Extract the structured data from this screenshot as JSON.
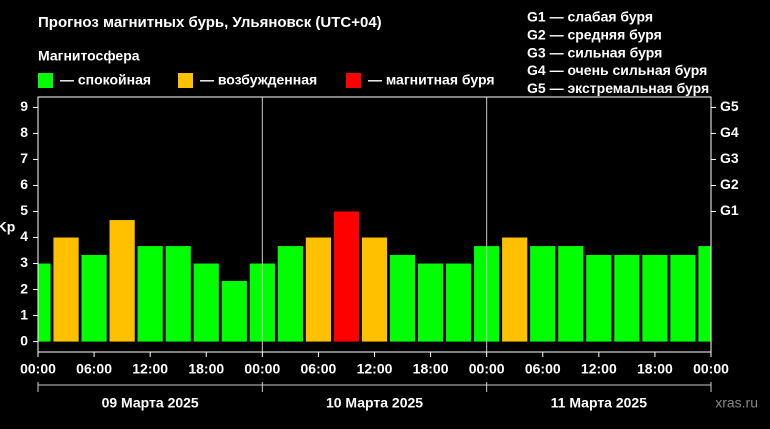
{
  "chart_data": {
    "type": "bar",
    "title": "Прогноз магнитных бурь, Ульяновск (UTC+04)",
    "legend_title": "Магнитосфера",
    "legend": [
      {
        "name": "— спокойная",
        "color": "#00ff00"
      },
      {
        "name": "— возбужденная",
        "color": "#ffc000"
      },
      {
        "name": "— магнитная буря",
        "color": "#ff0000"
      }
    ],
    "storm_scale": [
      "G1 — слабая буря",
      "G2 — средняя буря",
      "G3 — сильная буря",
      "G4 — очень сильная буря",
      "G5 — экстремальная буря"
    ],
    "y_label": "Kp",
    "x": [
      0,
      3,
      6,
      9,
      12,
      15,
      18,
      21,
      24,
      27,
      30,
      33,
      36,
      39,
      42,
      45,
      48,
      51,
      54,
      57,
      60,
      63,
      66,
      69,
      72
    ],
    "values": [
      3,
      4,
      3.33,
      4.67,
      3.67,
      3.67,
      3,
      2.33,
      3,
      3.67,
      4,
      5,
      4,
      3.33,
      3,
      3,
      3.67,
      4,
      3.67,
      3.67,
      3.33,
      3.33,
      3.33,
      3.33,
      3.67
    ],
    "bar_colors": [
      "#00ff00",
      "#ffc000",
      "#00ff00",
      "#ffc000",
      "#00ff00",
      "#00ff00",
      "#00ff00",
      "#00ff00",
      "#00ff00",
      "#00ff00",
      "#ffc000",
      "#ff0000",
      "#ffc000",
      "#00ff00",
      "#00ff00",
      "#00ff00",
      "#00ff00",
      "#ffc000",
      "#00ff00",
      "#00ff00",
      "#00ff00",
      "#00ff00",
      "#00ff00",
      "#00ff00",
      "#00ff00"
    ],
    "xlim": [
      0,
      72
    ],
    "xticks": [
      {
        "value": 0,
        "label": "00:00"
      },
      {
        "value": 6,
        "label": "06:00"
      },
      {
        "value": 12,
        "label": "12:00"
      },
      {
        "value": 18,
        "label": "18:00"
      },
      {
        "value": 24,
        "label": "00:00"
      },
      {
        "value": 30,
        "label": "06:00"
      },
      {
        "value": 36,
        "label": "12:00"
      },
      {
        "value": 42,
        "label": "18:00"
      },
      {
        "value": 48,
        "label": "00:00"
      },
      {
        "value": 54,
        "label": "06:00"
      },
      {
        "value": 60,
        "label": "12:00"
      },
      {
        "value": 66,
        "label": "18:00"
      },
      {
        "value": 72,
        "label": "00:00"
      }
    ],
    "dates": [
      "09 Марта 2025",
      "10 Марта 2025",
      "11 Марта 2025"
    ],
    "ylim": [
      -0.4,
      9.4
    ],
    "yticks": [
      0,
      1,
      2,
      3,
      4,
      5,
      6,
      7,
      8,
      9
    ],
    "y2lim": [
      -0.4,
      9.4
    ],
    "y2ticks": [
      {
        "value": 5,
        "label": "G1"
      },
      {
        "value": 6,
        "label": "G2"
      },
      {
        "value": 7,
        "label": "G3"
      },
      {
        "value": 8,
        "label": "G4"
      },
      {
        "value": 9,
        "label": "G5"
      }
    ],
    "watermark": "xras.ru"
  }
}
